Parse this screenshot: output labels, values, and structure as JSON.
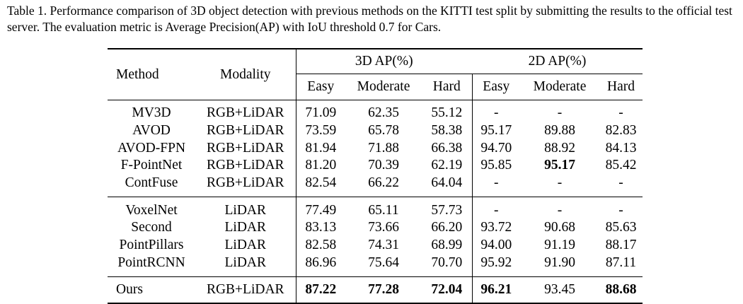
{
  "caption": "Table 1. Performance comparison of 3D object detection with previous methods on the KITTI test split by submitting the results to the official test server. The evaluation metric is Average Precision(AP) with IoU threshold 0.7 for Cars.",
  "headers": {
    "method": "Method",
    "modality": "Modality",
    "ap3d": "3D AP(%)",
    "ap2d": "2D AP(%)",
    "easy": "Easy",
    "moderate": "Moderate",
    "hard": "Hard"
  },
  "groups": [
    {
      "rows": [
        {
          "method": "MV3D",
          "modality": "RGB+LiDAR",
          "v": [
            "71.09",
            "62.35",
            "55.12",
            "-",
            "-",
            "-"
          ]
        },
        {
          "method": "AVOD",
          "modality": "RGB+LiDAR",
          "v": [
            "73.59",
            "65.78",
            "58.38",
            "95.17",
            "89.88",
            "82.83"
          ]
        },
        {
          "method": "AVOD-FPN",
          "modality": "RGB+LiDAR",
          "v": [
            "81.94",
            "71.88",
            "66.38",
            "94.70",
            "88.92",
            "84.13"
          ]
        },
        {
          "method": "F-PointNet",
          "modality": "RGB+LiDAR",
          "v": [
            "81.20",
            "70.39",
            "62.19",
            "95.85",
            "95.17",
            "85.42"
          ]
        },
        {
          "method": "ContFuse",
          "modality": "RGB+LiDAR",
          "v": [
            "82.54",
            "66.22",
            "64.04",
            "-",
            "-",
            "-"
          ]
        }
      ]
    },
    {
      "rows": [
        {
          "method": "VoxelNet",
          "modality": "LiDAR",
          "v": [
            "77.49",
            "65.11",
            "57.73",
            "-",
            "-",
            "-"
          ]
        },
        {
          "method": "Second",
          "modality": "LiDAR",
          "v": [
            "83.13",
            "73.66",
            "66.20",
            "93.72",
            "90.68",
            "85.63"
          ]
        },
        {
          "method": "PointPillars",
          "modality": "LiDAR",
          "v": [
            "82.58",
            "74.31",
            "68.99",
            "94.00",
            "91.19",
            "88.17"
          ]
        },
        {
          "method": "PointRCNN",
          "modality": "LiDAR",
          "v": [
            "86.96",
            "75.64",
            "70.70",
            "95.92",
            "91.90",
            "87.11"
          ]
        }
      ]
    }
  ],
  "ours": {
    "method": "Ours",
    "modality": "RGB+LiDAR",
    "v": [
      "87.22",
      "77.28",
      "72.04",
      "96.21",
      "93.45",
      "88.68"
    ]
  }
}
